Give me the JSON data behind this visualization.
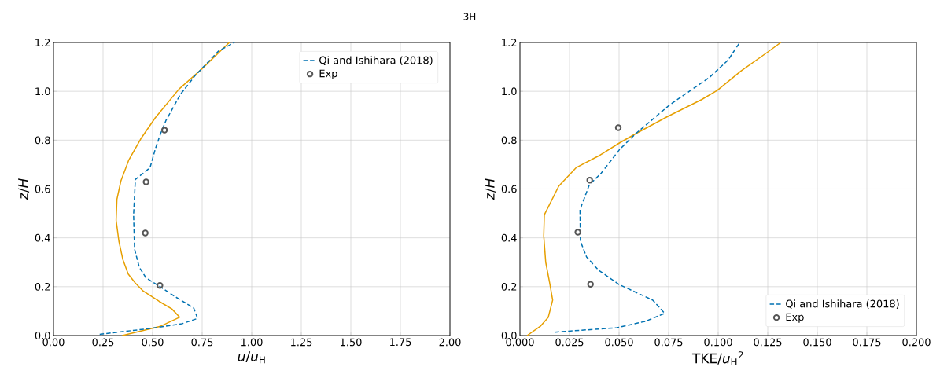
{
  "chart_data": [
    {
      "type": "line",
      "title": "3H",
      "xlabel": "*u*/*u*$_{H}$",
      "ylabel": "*z*/*H*",
      "xlim": [
        0,
        2
      ],
      "ylim": [
        0,
        1.2
      ],
      "xticks": [
        {
          "value": 0,
          "label": "0.00"
        },
        {
          "value": 0.25,
          "label": "0.25"
        },
        {
          "value": 0.5,
          "label": "0.50"
        },
        {
          "value": 0.75,
          "label": "0.75"
        },
        {
          "value": 1,
          "label": "1.00"
        },
        {
          "value": 1.25,
          "label": "1.25"
        },
        {
          "value": 1.5,
          "label": "1.50"
        },
        {
          "value": 1.75,
          "label": "1.75"
        },
        {
          "value": 2,
          "label": "2.00"
        }
      ],
      "yticks": [
        {
          "value": 0,
          "label": "0.0"
        },
        {
          "value": 0.2,
          "label": "0.2"
        },
        {
          "value": 0.4,
          "label": "0.4"
        },
        {
          "value": 0.6,
          "label": "0.6"
        },
        {
          "value": 0.8,
          "label": "0.8"
        },
        {
          "value": 1,
          "label": "1.0"
        },
        {
          "value": 1.2,
          "label": "1.2"
        }
      ],
      "grid": true,
      "legend": "top right",
      "series": [
        {
          "color": "#e69f00",
          "line_style": "solid",
          "x": [
            0.347,
            0.54,
            0.637,
            0.597,
            0.533,
            0.453,
            0.413,
            0.377,
            0.35,
            0.33,
            0.316,
            0.32,
            0.34,
            0.38,
            0.44,
            0.513,
            0.633,
            0.753,
            0.887
          ],
          "values": [
            0,
            0.038,
            0.075,
            0.109,
            0.14,
            0.182,
            0.215,
            0.252,
            0.311,
            0.386,
            0.472,
            0.558,
            0.633,
            0.719,
            0.805,
            0.891,
            1.009,
            1.095,
            1.2
          ]
        },
        {
          "name": "Qi and Ishihara (2018)",
          "color": "#0072b2",
          "line_style": "dashed",
          "x": [
            0.233,
            0.487,
            0.647,
            0.727,
            0.707,
            0.62,
            0.54,
            0.467,
            0.433,
            0.409,
            0.404,
            0.413,
            0.487,
            0.513,
            0.54,
            0.567,
            0.64,
            0.713,
            0.833,
            0.913
          ],
          "values": [
            0.005,
            0.029,
            0.048,
            0.07,
            0.113,
            0.156,
            0.199,
            0.236,
            0.279,
            0.354,
            0.494,
            0.639,
            0.687,
            0.762,
            0.826,
            0.88,
            0.987,
            1.063,
            1.165,
            1.2
          ]
        },
        {
          "type": "scatter",
          "name": "Exp",
          "color": "#555555",
          "marker": "circle",
          "x": [
            0.56,
            0.467,
            0.463,
            0.537
          ],
          "values": [
            0.841,
            0.629,
            0.42,
            0.205
          ]
        }
      ]
    },
    {
      "type": "line",
      "xlabel": "TKE/*u*$_{H}$$^{2}$",
      "ylabel": "*z*/*H*",
      "xlim": [
        0,
        0.2
      ],
      "ylim": [
        0,
        1.2
      ],
      "xticks": [
        {
          "value": 0,
          "label": "0.000"
        },
        {
          "value": 0.025,
          "label": "0.025"
        },
        {
          "value": 0.05,
          "label": "0.050"
        },
        {
          "value": 0.075,
          "label": "0.075"
        },
        {
          "value": 0.1,
          "label": "0.100"
        },
        {
          "value": 0.125,
          "label": "0.125"
        },
        {
          "value": 0.15,
          "label": "0.150"
        },
        {
          "value": 0.175,
          "label": "0.175"
        },
        {
          "value": 0.2,
          "label": "0.200"
        }
      ],
      "yticks": [
        {
          "value": 0,
          "label": "0.0"
        },
        {
          "value": 0.2,
          "label": "0.2"
        },
        {
          "value": 0.4,
          "label": "0.4"
        },
        {
          "value": 0.6,
          "label": "0.6"
        },
        {
          "value": 0.8,
          "label": "0.8"
        },
        {
          "value": 1,
          "label": "1.0"
        },
        {
          "value": 1.2,
          "label": "1.2"
        }
      ],
      "grid": true,
      "legend": "bottom right",
      "series": [
        {
          "color": "#e69f00",
          "line_style": "solid",
          "x": [
            0.0036,
            0.0103,
            0.0143,
            0.0165,
            0.015,
            0.013,
            0.012,
            0.0123,
            0.0196,
            0.0283,
            0.0396,
            0.0503,
            0.0583,
            0.0743,
            0.0916,
            0.0996,
            0.1116,
            0.1247,
            0.1316
          ],
          "values": [
            0,
            0.038,
            0.075,
            0.145,
            0.215,
            0.3,
            0.408,
            0.494,
            0.612,
            0.687,
            0.735,
            0.789,
            0.826,
            0.896,
            0.966,
            1.004,
            1.084,
            1.159,
            1.2
          ]
        },
        {
          "name": "Qi and Ishihara (2018)",
          "color": "#0072b2",
          "line_style": "dashed",
          "x": [
            0.0176,
            0.049,
            0.0636,
            0.073,
            0.067,
            0.05,
            0.0396,
            0.0336,
            0.0305,
            0.0303,
            0.035,
            0.041,
            0.0503,
            0.0583,
            0.0756,
            0.0956,
            0.1049,
            0.1109
          ],
          "values": [
            0.014,
            0.032,
            0.059,
            0.091,
            0.145,
            0.209,
            0.268,
            0.322,
            0.386,
            0.515,
            0.617,
            0.665,
            0.762,
            0.826,
            0.945,
            1.057,
            1.127,
            1.2
          ]
        },
        {
          "type": "scatter",
          "name": "Exp",
          "color": "#555555",
          "marker": "circle",
          "x": [
            0.0496,
            0.0352,
            0.0292,
            0.0356
          ],
          "values": [
            0.851,
            0.636,
            0.423,
            0.21
          ]
        }
      ]
    }
  ]
}
